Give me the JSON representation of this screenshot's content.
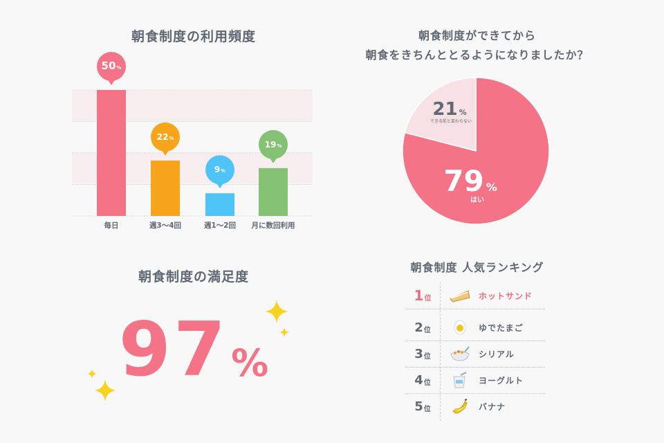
{
  "colors": {
    "bg": "#f8f8f8",
    "text": "#5f6873",
    "accent": "#f47387",
    "pie_yes": "#f47387",
    "pie_no": "#f8e1e4",
    "sparkle": "#f7d21e"
  },
  "chart_data": [
    {
      "type": "bar",
      "title": "朝食制度の利用頻度",
      "categories": [
        "毎日",
        "週3〜4回",
        "週1〜2回",
        "月に数回利用"
      ],
      "values": [
        50,
        22,
        9,
        19
      ],
      "labels": [
        "50",
        "22",
        "9",
        "19"
      ],
      "unit": "%",
      "colors": [
        "#f47387",
        "#f8a51c",
        "#4dc4f5",
        "#85c173"
      ],
      "ylim": [
        0,
        50
      ],
      "grid": true
    },
    {
      "type": "pie",
      "title_lines": [
        "朝食制度ができてから",
        "朝食をきちんととるようになりましたか？"
      ],
      "slices": [
        {
          "label": "はい",
          "value": 79,
          "color": "#f47387"
        },
        {
          "label": "できる前と変わらない",
          "value": 21,
          "color": "#f8e1e4"
        }
      ],
      "unit": "%"
    }
  ],
  "satisfaction": {
    "title": "朝食制度の満足度",
    "value": "97",
    "unit": "%"
  },
  "ranking": {
    "title": "朝食制度 人気ランキング",
    "rank_suffix": "位",
    "items": [
      {
        "rank": "1",
        "name": "ホットサンド",
        "icon": "sandwich-icon"
      },
      {
        "rank": "2",
        "name": "ゆでたまご",
        "icon": "boiled-egg-icon"
      },
      {
        "rank": "3",
        "name": "シリアル",
        "icon": "cereal-bowl-icon"
      },
      {
        "rank": "4",
        "name": "ヨーグルト",
        "icon": "yogurt-cup-icon"
      },
      {
        "rank": "5",
        "name": "バナナ",
        "icon": "banana-icon"
      }
    ]
  }
}
